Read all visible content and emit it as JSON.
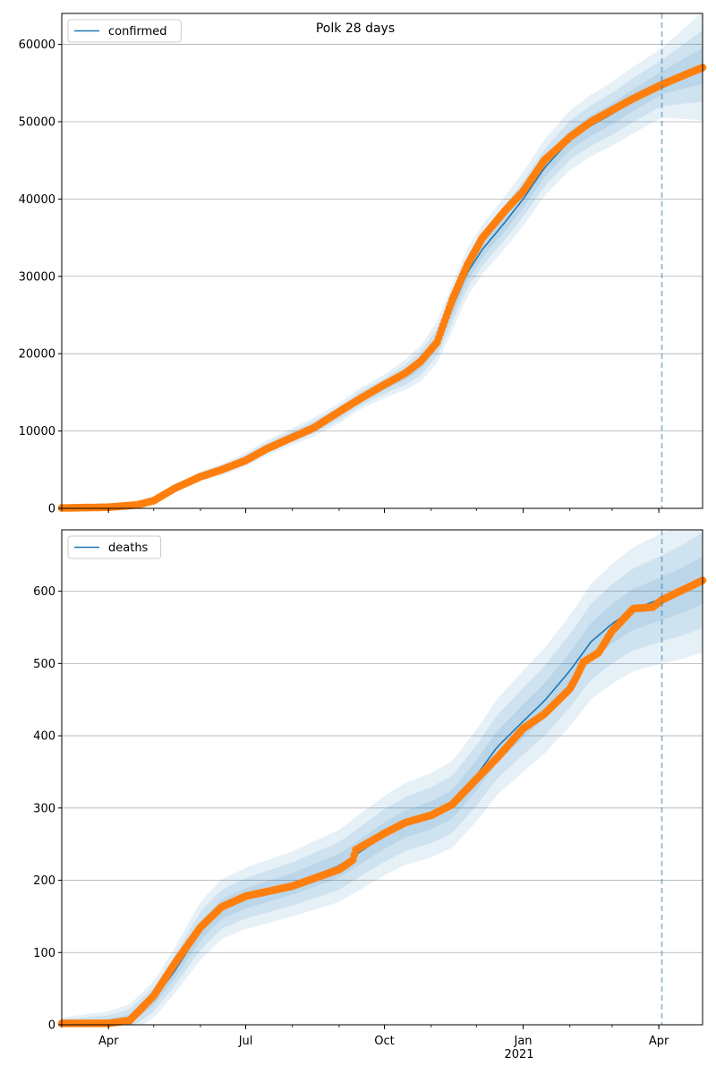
{
  "figure": {
    "title": "Polk 28 days"
  },
  "colors": {
    "line": "#1f77b4",
    "observed": "#ff7f0e",
    "band": "#1f77b4",
    "grid": "#b0b0b0",
    "forecast_line": "#1f77b4"
  },
  "x_axis": {
    "ticks": [
      {
        "date": "2020-04-01",
        "label": "Apr"
      },
      {
        "date": "2020-07-01",
        "label": "Jul"
      },
      {
        "date": "2020-10-01",
        "label": "Oct"
      },
      {
        "date": "2021-01-01",
        "label": "Jan"
      },
      {
        "date": "2021-04-01",
        "label": "Apr"
      }
    ],
    "year_label": "2021",
    "range": [
      "2020-03-01",
      "2021-04-30"
    ],
    "forecast_start": "2021-04-03"
  },
  "chart_data": [
    {
      "type": "line",
      "legend": "confirmed",
      "legend_position": "upper left",
      "ylim": [
        0,
        64000
      ],
      "yticks": [
        0,
        10000,
        20000,
        30000,
        40000,
        50000,
        60000
      ],
      "grid": "horizontal",
      "line_series": [
        [
          "2020-03-01",
          100
        ],
        [
          "2020-04-01",
          200
        ],
        [
          "2020-04-20",
          500
        ],
        [
          "2020-05-01",
          1100
        ],
        [
          "2020-05-15",
          2500
        ],
        [
          "2020-06-01",
          4200
        ],
        [
          "2020-06-15",
          5000
        ],
        [
          "2020-07-01",
          6300
        ],
        [
          "2020-07-15",
          7800
        ],
        [
          "2020-08-01",
          9300
        ],
        [
          "2020-08-15",
          10500
        ],
        [
          "2020-09-01",
          12300
        ],
        [
          "2020-09-15",
          14200
        ],
        [
          "2020-10-01",
          15800
        ],
        [
          "2020-10-15",
          17300
        ],
        [
          "2020-10-25",
          18700
        ],
        [
          "2020-11-05",
          21500
        ],
        [
          "2020-11-15",
          26000
        ],
        [
          "2020-11-25",
          30500
        ],
        [
          "2020-12-05",
          33500
        ],
        [
          "2020-12-20",
          37000
        ],
        [
          "2021-01-01",
          40000
        ],
        [
          "2021-01-15",
          44000
        ],
        [
          "2021-02-01",
          47600
        ],
        [
          "2021-02-15",
          49500
        ],
        [
          "2021-03-01",
          51000
        ],
        [
          "2021-03-15",
          52800
        ],
        [
          "2021-04-03",
          55000
        ],
        [
          "2021-04-15",
          56000
        ],
        [
          "2021-04-30",
          57200
        ]
      ],
      "observed": [
        [
          "2020-03-01",
          50
        ],
        [
          "2020-04-01",
          150
        ],
        [
          "2020-04-20",
          450
        ],
        [
          "2020-05-01",
          1000
        ],
        [
          "2020-05-15",
          2600
        ],
        [
          "2020-06-01",
          4100
        ],
        [
          "2020-06-15",
          5000
        ],
        [
          "2020-07-01",
          6200
        ],
        [
          "2020-07-15",
          7700
        ],
        [
          "2020-08-01",
          9200
        ],
        [
          "2020-08-15",
          10400
        ],
        [
          "2020-09-01",
          12500
        ],
        [
          "2020-09-15",
          14200
        ],
        [
          "2020-10-01",
          16000
        ],
        [
          "2020-10-15",
          17500
        ],
        [
          "2020-10-25",
          19000
        ],
        [
          "2020-11-05",
          21500
        ],
        [
          "2020-11-15",
          27000
        ],
        [
          "2020-11-25",
          31500
        ],
        [
          "2020-12-05",
          35000
        ],
        [
          "2020-12-20",
          38500
        ],
        [
          "2021-01-01",
          41000
        ],
        [
          "2021-01-15",
          45000
        ],
        [
          "2021-02-01",
          48000
        ],
        [
          "2021-02-15",
          50000
        ],
        [
          "2021-03-01",
          51500
        ],
        [
          "2021-03-15",
          53000
        ],
        [
          "2021-04-03",
          54800
        ],
        [
          "2021-04-15",
          55800
        ],
        [
          "2021-04-30",
          57000
        ]
      ],
      "band_half_widths": [
        [
          "2020-03-01",
          200
        ],
        [
          "2020-05-01",
          300
        ],
        [
          "2020-07-01",
          900
        ],
        [
          "2020-10-01",
          1500
        ],
        [
          "2020-11-15",
          3000
        ],
        [
          "2021-01-01",
          3500
        ],
        [
          "2021-04-03",
          4500
        ],
        [
          "2021-04-30",
          7000
        ]
      ]
    },
    {
      "type": "line",
      "legend": "deaths",
      "legend_position": "upper left",
      "ylim": [
        0,
        685
      ],
      "yticks": [
        0,
        100,
        200,
        300,
        400,
        500,
        600
      ],
      "grid": "horizontal",
      "line_series": [
        [
          "2020-03-01",
          2
        ],
        [
          "2020-04-01",
          2
        ],
        [
          "2020-04-15",
          8
        ],
        [
          "2020-05-01",
          35
        ],
        [
          "2020-05-15",
          75
        ],
        [
          "2020-06-01",
          130
        ],
        [
          "2020-06-15",
          160
        ],
        [
          "2020-07-01",
          175
        ],
        [
          "2020-08-01",
          195
        ],
        [
          "2020-09-01",
          220
        ],
        [
          "2020-10-01",
          262
        ],
        [
          "2020-10-15",
          278
        ],
        [
          "2020-11-01",
          290
        ],
        [
          "2020-11-15",
          305
        ],
        [
          "2020-12-01",
          345
        ],
        [
          "2020-12-15",
          385
        ],
        [
          "2021-01-01",
          420
        ],
        [
          "2021-01-15",
          448
        ],
        [
          "2021-02-01",
          490
        ],
        [
          "2021-02-15",
          530
        ],
        [
          "2021-03-01",
          555
        ],
        [
          "2021-03-15",
          575
        ],
        [
          "2021-04-03",
          590
        ],
        [
          "2021-04-15",
          600
        ],
        [
          "2021-04-30",
          615
        ]
      ],
      "observed": [
        [
          "2020-03-01",
          2
        ],
        [
          "2020-04-01",
          2
        ],
        [
          "2020-04-15",
          6
        ],
        [
          "2020-05-01",
          40
        ],
        [
          "2020-05-15",
          85
        ],
        [
          "2020-06-01",
          135
        ],
        [
          "2020-06-15",
          163
        ],
        [
          "2020-07-01",
          178
        ],
        [
          "2020-08-01",
          192
        ],
        [
          "2020-09-01",
          215
        ],
        [
          "2020-09-10",
          228
        ],
        [
          "2020-09-12",
          242
        ],
        [
          "2020-10-01",
          265
        ],
        [
          "2020-10-15",
          280
        ],
        [
          "2020-11-01",
          290
        ],
        [
          "2020-11-15",
          305
        ],
        [
          "2020-12-01",
          340
        ],
        [
          "2020-12-15",
          370
        ],
        [
          "2021-01-01",
          410
        ],
        [
          "2021-01-15",
          430
        ],
        [
          "2021-02-01",
          465
        ],
        [
          "2021-02-05",
          480
        ],
        [
          "2021-02-10",
          502
        ],
        [
          "2021-02-20",
          515
        ],
        [
          "2021-03-01",
          545
        ],
        [
          "2021-03-15",
          576
        ],
        [
          "2021-03-28",
          578
        ],
        [
          "2021-04-03",
          588
        ],
        [
          "2021-04-15",
          600
        ],
        [
          "2021-04-30",
          615
        ]
      ],
      "band_half_widths": [
        [
          "2020-03-01",
          8
        ],
        [
          "2020-05-01",
          25
        ],
        [
          "2020-06-01",
          40
        ],
        [
          "2020-08-01",
          45
        ],
        [
          "2020-10-01",
          55
        ],
        [
          "2020-11-15",
          60
        ],
        [
          "2021-01-01",
          70
        ],
        [
          "2021-04-03",
          90
        ],
        [
          "2021-04-30",
          100
        ]
      ]
    }
  ]
}
